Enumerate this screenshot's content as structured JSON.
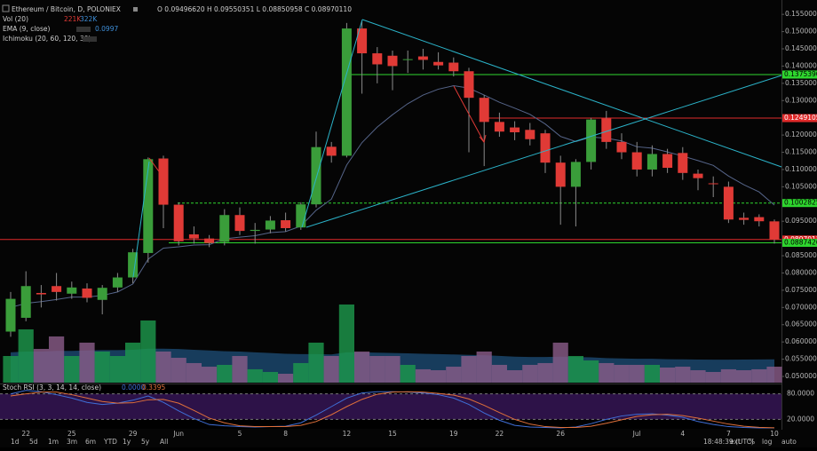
{
  "chart_data": {
    "type": "candlestick",
    "title": "Ethereum / Bitcoin, D, POLONIEX",
    "ohlc_text": "O 0.09496620 H 0.09550351 L 0.08850958 C 0.08970110",
    "categories": [
      null,
      "22",
      null,
      null,
      "25",
      null,
      null,
      null,
      "29",
      null,
      null,
      "Jun",
      null,
      null,
      null,
      "5",
      null,
      null,
      "8",
      null,
      null,
      null,
      "12",
      null,
      null,
      "15",
      null,
      null,
      null,
      "19",
      null,
      null,
      "22",
      null,
      null,
      null,
      "26",
      null,
      null,
      null,
      null,
      "Jul",
      null,
      null,
      "4",
      null,
      null,
      "7",
      null,
      null,
      "10"
    ],
    "open": [
      0.063,
      0.067,
      0.0742,
      0.0762,
      0.074,
      0.0755,
      0.0722,
      0.0758,
      0.0787,
      0.0858,
      0.1132,
      0.0998,
      0.0912,
      0.09,
      0.089,
      0.0968,
      0.0922,
      0.0926,
      0.0953,
      0.0932,
      0.0999,
      0.1166,
      0.114,
      0.1509,
      0.1437,
      0.143,
      0.1418,
      0.1428,
      0.1412,
      0.141,
      0.1385,
      0.1308,
      0.1238,
      0.1222,
      0.1215,
      0.1205,
      0.112,
      0.105,
      0.1122,
      0.1248,
      0.118,
      0.115,
      0.11,
      0.1145,
      0.1148,
      0.1088,
      0.106,
      0.105,
      0.096,
      0.0962,
      0.0949662
    ],
    "high": [
      0.0745,
      0.0805,
      0.0765,
      0.08,
      0.0775,
      0.077,
      0.0765,
      0.08,
      0.087,
      0.1135,
      0.114,
      0.1005,
      0.0935,
      0.091,
      0.0985,
      0.099,
      0.0945,
      0.0965,
      0.0975,
      0.1005,
      0.121,
      0.118,
      0.1525,
      0.153,
      0.1455,
      0.1445,
      0.1445,
      0.145,
      0.144,
      0.1425,
      0.1395,
      0.1316,
      0.1265,
      0.124,
      0.1235,
      0.1215,
      0.114,
      0.113,
      0.125,
      0.127,
      0.1205,
      0.118,
      0.117,
      0.116,
      0.1165,
      0.11,
      0.108,
      0.1065,
      0.0975,
      0.097,
      0.09550351
    ],
    "low": [
      0.0615,
      0.066,
      0.07,
      0.072,
      0.0725,
      0.0715,
      0.068,
      0.0745,
      0.077,
      0.083,
      0.093,
      0.088,
      0.0885,
      0.0875,
      0.088,
      0.091,
      0.0885,
      0.0915,
      0.092,
      0.0925,
      0.099,
      0.112,
      0.1135,
      0.132,
      0.135,
      0.133,
      0.138,
      0.139,
      0.139,
      0.137,
      0.115,
      0.111,
      0.1195,
      0.1185,
      0.117,
      0.109,
      0.094,
      0.0935,
      0.11,
      0.116,
      0.113,
      0.108,
      0.108,
      0.109,
      0.107,
      0.104,
      0.102,
      0.0945,
      0.094,
      0.0935,
      0.08850958
    ],
    "close": [
      0.0725,
      0.0762,
      0.0738,
      0.0745,
      0.0758,
      0.0728,
      0.0757,
      0.0787,
      0.086,
      0.113,
      0.0998,
      0.0892,
      0.09,
      0.0887,
      0.0968,
      0.0922,
      0.0925,
      0.0952,
      0.093,
      0.0999,
      0.1165,
      0.114,
      0.1509,
      0.1437,
      0.1405,
      0.14,
      0.142,
      0.1418,
      0.1402,
      0.1385,
      0.1308,
      0.1238,
      0.121,
      0.1208,
      0.1188,
      0.112,
      0.105,
      0.1122,
      0.1245,
      0.118,
      0.115,
      0.11,
      0.1145,
      0.1105,
      0.109,
      0.1075,
      0.1058,
      0.0955,
      0.0954,
      0.095,
      0.0897011
    ],
    "up_color": "#3a9d3a",
    "down_color": "#e03a36",
    "ylim": [
      0.0482,
      0.1571
    ],
    "yticks": [
      {
        "value": 0.155,
        "label": "0.15500000"
      },
      {
        "value": 0.15,
        "label": "0.15000000"
      },
      {
        "value": 0.145,
        "label": "0.14500000"
      },
      {
        "value": 0.14,
        "label": "0.14000000"
      },
      {
        "value": 0.135,
        "label": "0.13500000"
      },
      {
        "value": 0.13,
        "label": "0.13000000"
      },
      {
        "value": 0.12,
        "label": "0.12000000"
      },
      {
        "value": 0.115,
        "label": "0.11500000"
      },
      {
        "value": 0.11,
        "label": "0.11000000"
      },
      {
        "value": 0.105,
        "label": "0.10500000"
      },
      {
        "value": 0.095,
        "label": "0.09500000"
      },
      {
        "value": 0.085,
        "label": "0.08500000"
      },
      {
        "value": 0.08,
        "label": "0.08000000"
      },
      {
        "value": 0.075,
        "label": "0.07500000"
      },
      {
        "value": 0.07,
        "label": "0.07000000"
      },
      {
        "value": 0.065,
        "label": "0.06500000"
      },
      {
        "value": 0.06,
        "label": "0.06000000"
      },
      {
        "value": 0.055,
        "label": "0.05500000"
      },
      {
        "value": 0.05,
        "label": "0.05000000"
      }
    ],
    "ema": {
      "name": "EMA (9, close)",
      "last_label": "0.0997",
      "color": "#56658a",
      "values": [
        0.07,
        0.0712,
        0.0717,
        0.0723,
        0.073,
        0.073,
        0.0735,
        0.0745,
        0.0768,
        0.084,
        0.0872,
        0.0876,
        0.0881,
        0.0882,
        0.0899,
        0.0904,
        0.0908,
        0.0917,
        0.092,
        0.0936,
        0.0982,
        0.1014,
        0.1113,
        0.1178,
        0.1223,
        0.1259,
        0.1291,
        0.1316,
        0.1333,
        0.1343,
        0.1336,
        0.1316,
        0.1295,
        0.1278,
        0.126,
        0.1232,
        0.1196,
        0.1181,
        0.1194,
        0.1191,
        0.1183,
        0.1166,
        0.1162,
        0.1151,
        0.1139,
        0.1126,
        0.1112,
        0.1081,
        0.1056,
        0.1035,
        0.0997
      ]
    },
    "volume": {
      "name": "Vol (20)",
      "last_label": "221K",
      "ma_last_label": "322K",
      "up_color": "#1d9a4c",
      "down_color": "#8b5d8a",
      "ma_color": "#1d4f7a",
      "values": [
        369,
        738,
        467,
        640,
        369,
        554,
        431,
        369,
        554,
        861,
        431,
        344,
        271,
        221,
        246,
        369,
        185,
        148,
        123,
        271,
        554,
        369,
        1082,
        431,
        369,
        369,
        246,
        185,
        172,
        221,
        369,
        431,
        246,
        172,
        246,
        271,
        554,
        369,
        308,
        271,
        246,
        246,
        246,
        209,
        221,
        172,
        148,
        185,
        172,
        185,
        221
      ],
      "ma": [
        420,
        430,
        430,
        440,
        440,
        445,
        450,
        450,
        455,
        470,
        470,
        465,
        455,
        445,
        435,
        430,
        420,
        410,
        400,
        395,
        395,
        390,
        420,
        420,
        415,
        410,
        405,
        400,
        395,
        390,
        385,
        380,
        370,
        360,
        355,
        355,
        360,
        355,
        350,
        340,
        335,
        330,
        330,
        325,
        322,
        320,
        318,
        318,
        320,
        321,
        322
      ]
    },
    "ichimoku": {
      "name": "Ichimoku (20, 60, 120, 30)"
    },
    "price_lines": [
      {
        "value": 0.13753903,
        "label": "0.13753903",
        "color": "#2ed62e"
      },
      {
        "value": 0.12491051,
        "label": "0.12491051",
        "color": "#e02a2a"
      },
      {
        "value": 0.10028253,
        "label": "0.10028253",
        "color": "#2ed62e"
      },
      {
        "value": 0.0897011,
        "label": "0.08970110",
        "color": "#e02a2a"
      },
      {
        "value": 0.0887426,
        "label": "0.08874260",
        "color": "#2ed62e"
      }
    ],
    "stoch": {
      "name": "Stoch RSI (3, 3, 14, 14, close)",
      "ylim": [
        0,
        100
      ],
      "yticks": [
        {
          "value": 80,
          "label": "80.0000"
        },
        {
          "value": 20,
          "label": "20.0000"
        }
      ],
      "series": [
        {
          "last_label": "0.0000",
          "color": "#3f6fd8",
          "values": [
            80,
            88,
            85,
            78,
            70,
            60,
            55,
            58,
            65,
            75,
            60,
            40,
            22,
            8,
            5,
            3,
            2,
            3,
            4,
            12,
            30,
            50,
            70,
            82,
            85,
            85,
            84,
            82,
            78,
            70,
            55,
            35,
            18,
            6,
            2,
            1,
            0,
            2,
            10,
            20,
            28,
            32,
            33,
            30,
            25,
            15,
            8,
            3,
            1,
            0,
            0
          ]
        },
        {
          "last_label": "0.3395",
          "color": "#e0703a",
          "values": [
            75,
            80,
            84,
            84,
            78,
            70,
            62,
            58,
            59,
            66,
            67,
            58,
            41,
            23,
            12,
            5,
            3,
            3,
            3,
            6,
            15,
            31,
            50,
            67,
            79,
            84,
            85,
            84,
            81,
            77,
            68,
            53,
            36,
            20,
            9,
            3,
            1,
            1,
            4,
            11,
            19,
            27,
            31,
            32,
            29,
            23,
            16,
            9,
            4,
            1.3,
            0.3395
          ]
        }
      ]
    }
  },
  "ui": {
    "ranges": [
      "1d",
      "5d",
      "1m",
      "3m",
      "6m",
      "YTD",
      "1y",
      "5y",
      "All"
    ],
    "time": "18:48:39 (UTC)",
    "buttons": [
      "ext",
      "%",
      "log",
      "auto"
    ]
  }
}
